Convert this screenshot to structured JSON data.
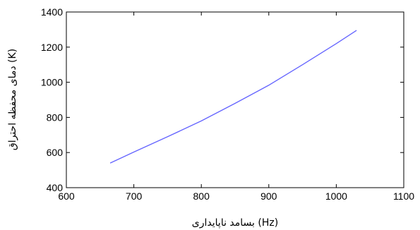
{
  "chart_data": {
    "type": "line",
    "xlabel": "بسامد ناپایداری (Hz)",
    "ylabel": "دمای محفظه احتراق (K)",
    "xlim": [
      600,
      1100
    ],
    "ylim": [
      400,
      1400
    ],
    "x_ticks": [
      "600",
      "700",
      "800",
      "900",
      "1000",
      "1100"
    ],
    "y_ticks": [
      "400",
      "600",
      "800",
      "1000",
      "1200",
      "1400"
    ],
    "grid": false,
    "series": [
      {
        "color": "#6666ff",
        "x": [
          665,
          700,
          750,
          800,
          850,
          900,
          950,
          1000,
          1030
        ],
        "y": [
          540,
          603,
          690,
          780,
          880,
          983,
          1100,
          1220,
          1295
        ]
      }
    ]
  }
}
